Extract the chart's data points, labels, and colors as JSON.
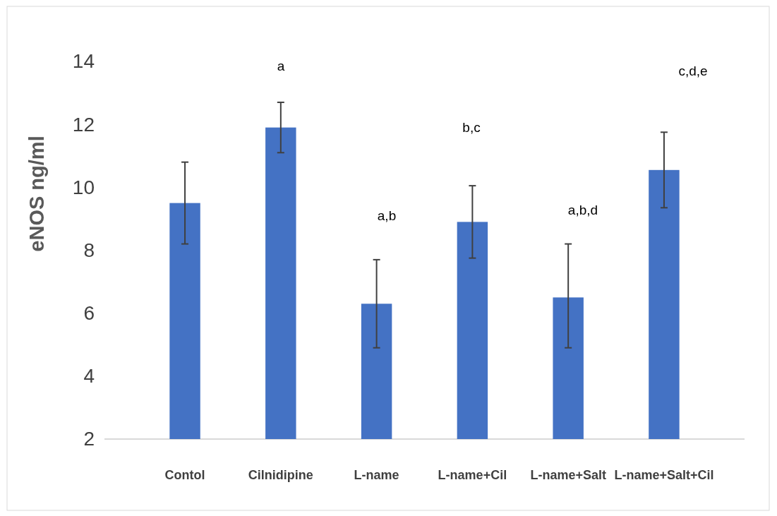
{
  "chart_data": {
    "type": "bar",
    "ylabel": "eNOS ng/ml",
    "categories": [
      "Contol",
      "Cilnidipine",
      "L-name",
      "L-name+Cil",
      "L-name+Salt",
      "L-name+Salt+Cil"
    ],
    "series": [
      {
        "color": "#4472c4",
        "values": [
          9.5,
          11.9,
          6.3,
          8.9,
          6.5,
          10.55
        ],
        "errors": [
          1.3,
          0.8,
          1.4,
          1.15,
          [
            4.9,
            8.2
          ],
          1.2
        ]
      }
    ],
    "ylim": [
      2,
      14
    ],
    "yticks": [
      2,
      4,
      6,
      8,
      10,
      12,
      14
    ],
    "grid": false,
    "annotations": [
      "a",
      "a,b",
      "b,c",
      "a,b,d",
      "c,d,e"
    ]
  }
}
